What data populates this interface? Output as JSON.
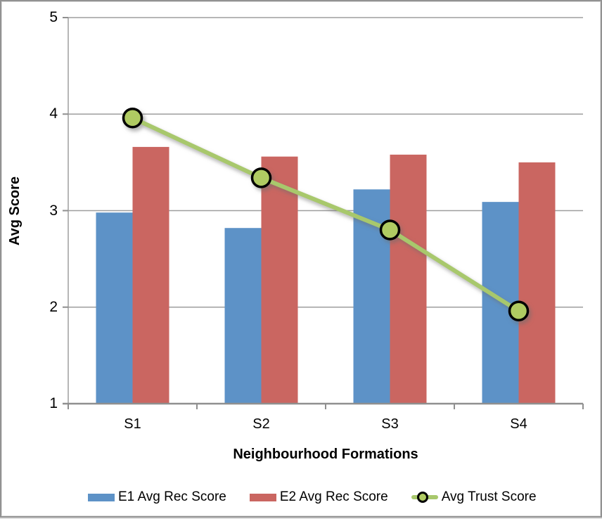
{
  "chart_data": {
    "type": "bar",
    "subtype": "grouped-bars-with-line-overlay",
    "categories": [
      "S1",
      "S2",
      "S3",
      "S4"
    ],
    "series": [
      {
        "name": "E1 Avg Rec Score",
        "type": "bar",
        "color": "#5D92C7",
        "values": [
          2.98,
          2.82,
          3.22,
          3.09
        ]
      },
      {
        "name": "E2 Avg Rec Score",
        "type": "bar",
        "color": "#CA6661",
        "values": [
          3.66,
          3.56,
          3.58,
          3.5
        ]
      },
      {
        "name": "Avg Trust Score",
        "type": "line",
        "color": "#A8C86C",
        "marker_fill": "#B0CB62",
        "marker_stroke": "#000000",
        "values": [
          3.96,
          3.34,
          2.8,
          1.96
        ]
      }
    ],
    "title": "",
    "xlabel": "Neighbourhood Formations",
    "ylabel": "Avg Score",
    "ylim": [
      1,
      5
    ],
    "yticks": [
      1,
      2,
      3,
      4,
      5
    ],
    "grid": true,
    "legend_position": "bottom"
  },
  "colors": {
    "gridline": "#9E9E9E",
    "axis": "#8F8F8F",
    "frame_border": "#929292",
    "text": "#000000",
    "background": "#FFFFFF"
  }
}
